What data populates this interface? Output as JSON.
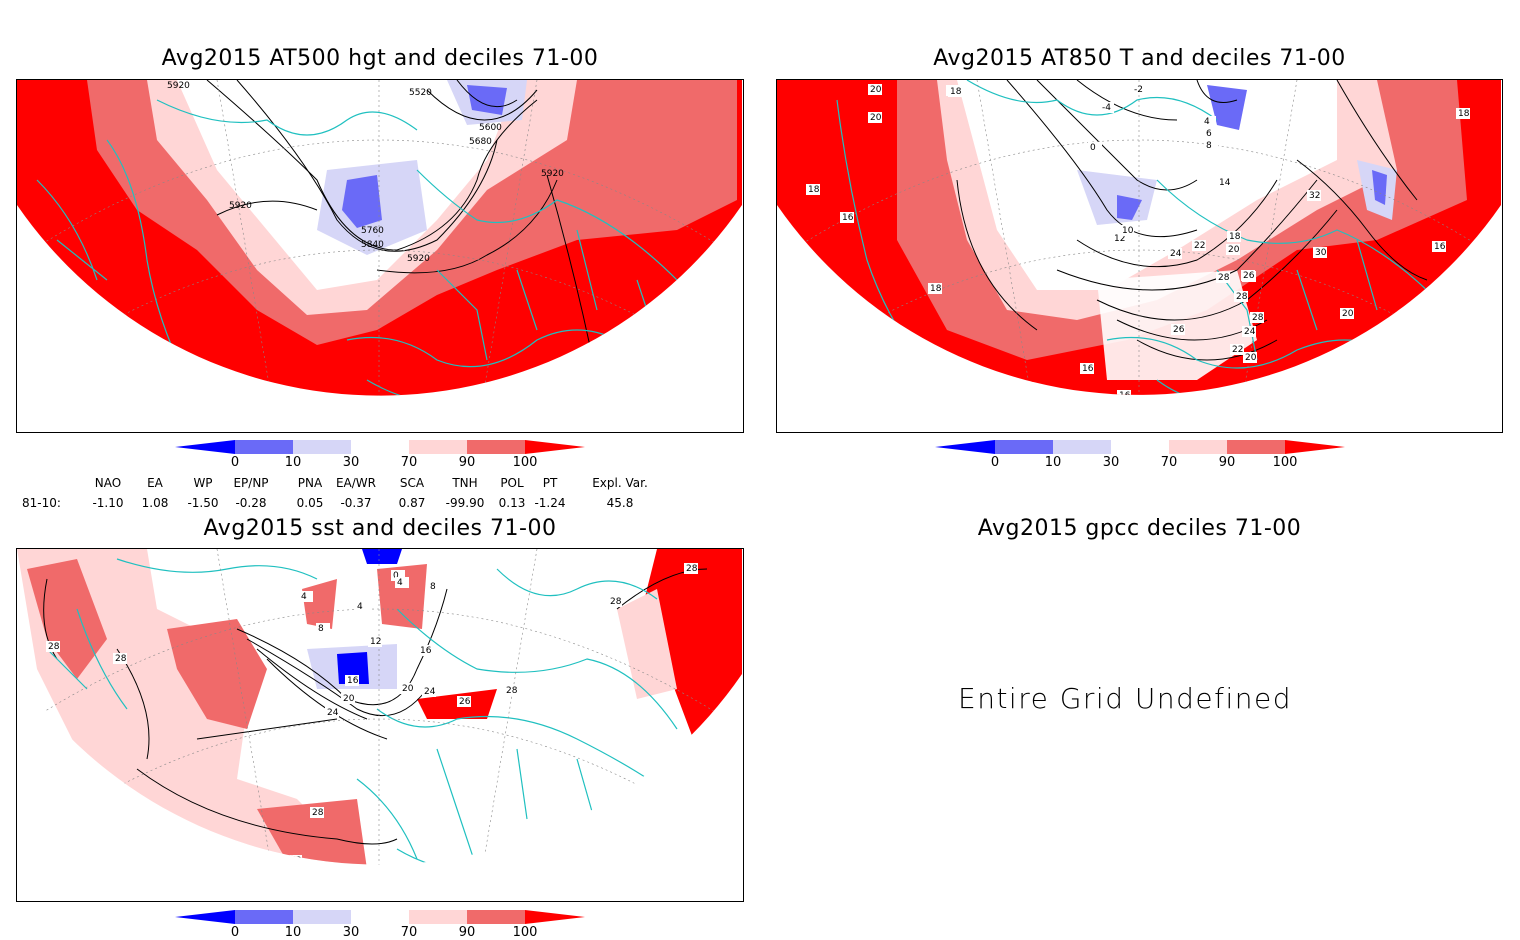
{
  "panels": {
    "p1": {
      "title": "Avg2015 AT500 hgt and deciles 71-00",
      "contour_labels": [
        "5920",
        "5520",
        "5600",
        "5680",
        "5920",
        "5920",
        "5760",
        "5840",
        "5920"
      ]
    },
    "p2": {
      "title": "Avg2015 AT850 T and deciles 71-00",
      "contour_labels": [
        "20",
        "20",
        "18",
        "20",
        "18",
        "16",
        "12",
        "10",
        "0",
        "-4",
        "-2",
        "4",
        "6",
        "8",
        "14",
        "18",
        "20",
        "24",
        "22",
        "26",
        "28",
        "28",
        "26",
        "24",
        "22",
        "20",
        "16",
        "16",
        "16",
        "32",
        "30",
        "26",
        "28",
        "18",
        "20",
        "16",
        "18"
      ]
    },
    "p3": {
      "title": "Avg2015 sst and deciles 71-00",
      "contour_labels": [
        "28",
        "28",
        "28",
        "24",
        "20",
        "16",
        "12",
        "8",
        "4",
        "4",
        "0",
        "4",
        "8",
        "16",
        "20",
        "24",
        "26",
        "28",
        "28",
        "28",
        "24",
        "28"
      ]
    },
    "p4": {
      "title": "Avg2015 gpcc deciles 71-00",
      "message": "Entire Grid Undefined"
    }
  },
  "colorbar": {
    "ticks": [
      "0",
      "10",
      "30",
      "70",
      "90",
      "100"
    ],
    "colors": [
      "#0000ff",
      "#6a6af7",
      "#d6d6f7",
      "#ffffff",
      "#ffd6d6",
      "#f06a6a",
      "#ff0000"
    ]
  },
  "indices": {
    "headers": [
      "NAO",
      "EA",
      "WP",
      "EP/NP",
      "PNA",
      "EA/WR",
      "SCA",
      "TNH",
      "POL",
      "PT",
      "Expl. Var."
    ],
    "row_label": "81-10:",
    "values": [
      "-1.10",
      "1.08",
      "-1.50",
      "-0.28",
      "0.05",
      "-0.37",
      "0.87",
      "-99.90",
      "0.13",
      "-1.24",
      "45.8"
    ]
  }
}
